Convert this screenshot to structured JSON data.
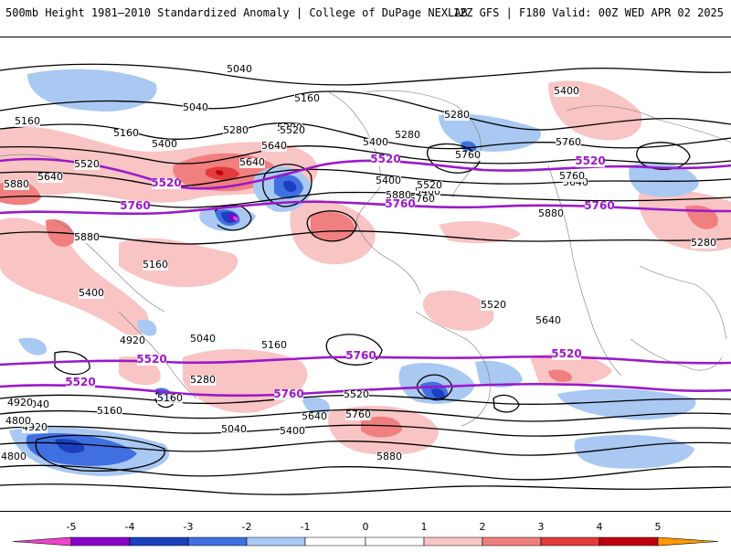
{
  "header": {
    "title": "500mb Height 1981–2010 Standardized Anomaly | College of DuPage NEXLAB",
    "run_info": "12Z GFS | F180 Valid: 00Z WED APR 02 2025"
  },
  "contour_labels": [
    "5040",
    "5040",
    "5160",
    "5160",
    "5160",
    "5280",
    "5280",
    "5280",
    "5280",
    "5400",
    "5400",
    "5400",
    "5400",
    "5400",
    "5520",
    "5520",
    "5520",
    "5640",
    "5640",
    "5640",
    "5640",
    "5760",
    "5760",
    "5760",
    "5760",
    "5880",
    "5880",
    "5880",
    "5880",
    "5160",
    "5280",
    "5400",
    "5520",
    "5640",
    "5040",
    "4920",
    "5160",
    "5040",
    "4920",
    "5160",
    "4920",
    "4800",
    "4800",
    "5160",
    "5280",
    "5040",
    "5400",
    "5520",
    "5640",
    "5760",
    "5880"
  ],
  "purple_labels": [
    "5520",
    "5520",
    "5520",
    "5760",
    "5760",
    "5760",
    "5760",
    "5520",
    "5520",
    "5520",
    "5760"
  ],
  "anomaly_colors": {
    "neg5": "#ee44cc",
    "neg4": "#8800cc",
    "neg3": "#1a3fbf",
    "neg2": "#3f6fe0",
    "neg1": "#a9c8f2",
    "neutral": "#ffffff",
    "pos1": "#f9c4c4",
    "pos2": "#f07f7f",
    "pos3": "#e23b3b",
    "pos4": "#bf0010",
    "pos5": "#ff9900"
  },
  "colorbar": {
    "ticks": [
      "-5",
      "-4",
      "-3",
      "-2",
      "-1",
      "0",
      "1",
      "2",
      "3",
      "4",
      "5"
    ]
  }
}
